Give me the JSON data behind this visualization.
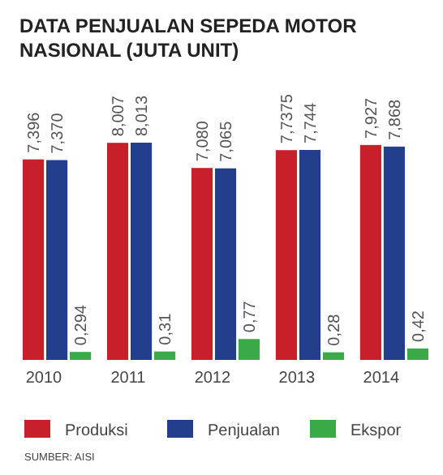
{
  "chart_data": {
    "type": "bar",
    "title": "DATA PENJUALAN SEPEDA MOTOR NASIONAL (JUTA UNIT)",
    "categories": [
      "2010",
      "2011",
      "2012",
      "2013",
      "2014"
    ],
    "series": [
      {
        "name": "Produksi",
        "color": "#c8202a",
        "values": [
          7.396,
          8.007,
          7.08,
          7.7375,
          7.927
        ],
        "value_labels": [
          "7,396",
          "8,007",
          "7,080",
          "7,7375",
          "7,927"
        ]
      },
      {
        "name": "Penjualan",
        "color": "#233e8b",
        "values": [
          7.37,
          8.013,
          7.065,
          7.744,
          7.868
        ],
        "value_labels": [
          "7,370",
          "8,013",
          "7,065",
          "7,744",
          "7,868"
        ]
      },
      {
        "name": "Ekspor",
        "color": "#3aaa48",
        "values": [
          0.294,
          0.31,
          0.77,
          0.28,
          0.42
        ],
        "value_labels": [
          "0,294",
          "0,31",
          "0,77",
          "0,28",
          "0,42"
        ]
      }
    ],
    "legend": "bottom",
    "annotations": [
      "SUMBER: AISI"
    ]
  }
}
